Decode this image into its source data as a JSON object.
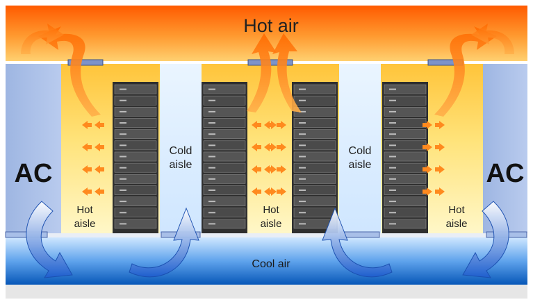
{
  "labels": {
    "hot_air": "Hot air",
    "cool_air": "Cool air",
    "ac_left": "AC",
    "ac_right": "AC",
    "cold_aisle_1_line1": "Cold",
    "cold_aisle_1_line2": "aisle",
    "cold_aisle_2_line1": "Cold",
    "cold_aisle_2_line2": "aisle",
    "hot_aisle_1_line1": "Hot",
    "hot_aisle_1_line2": "aisle",
    "hot_aisle_2_line1": "Hot",
    "hot_aisle_2_line2": "aisle",
    "hot_aisle_3_line1": "Hot",
    "hot_aisle_3_line2": "aisle"
  },
  "colors": {
    "hot_top": "#ff6a00",
    "hot_mid": "#ffd24a",
    "hot_bottom": "#fff6b8",
    "cool_top": "#bfe0ff",
    "cool_bottom": "#0a62c8",
    "ac_unit": "#a9bfe6",
    "cold_aisle": "#d9ecff",
    "rack": "#3a3a3a",
    "arrow_hot": "#ff7a1a",
    "arrow_cold": "#2d6fd6"
  },
  "rack_count": 4,
  "slots_per_rack": 13
}
